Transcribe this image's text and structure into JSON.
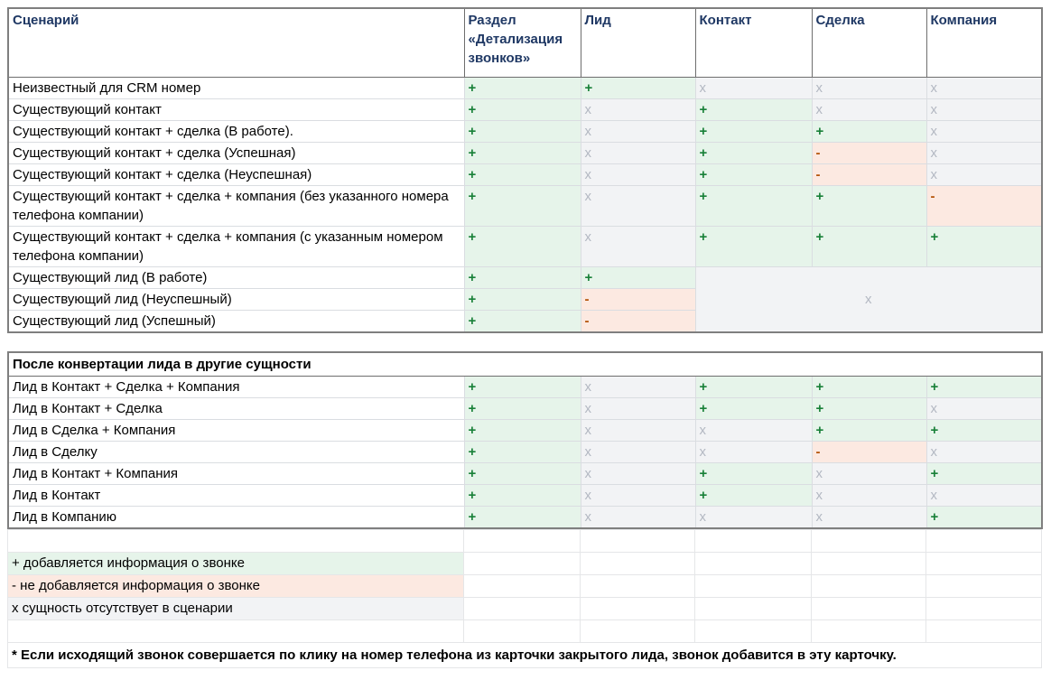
{
  "columns": [
    "Сценарий",
    "Раздел «Детализация звонков»",
    "Лид",
    "Контакт",
    "Сделка",
    "Компания"
  ],
  "markers": {
    "plus": "+",
    "minus": "-",
    "absent": "x"
  },
  "table1": {
    "rows": [
      {
        "label": "Неизвестный для CRM номер",
        "cells": [
          "plus",
          "plus",
          "absent",
          "absent",
          "absent"
        ]
      },
      {
        "label": "Существующий контакт",
        "cells": [
          "plus",
          "absent",
          "plus",
          "absent",
          "absent"
        ]
      },
      {
        "label": "Существующий контакт + сделка (В работе).",
        "cells": [
          "plus",
          "absent",
          "plus",
          "plus",
          "absent"
        ]
      },
      {
        "label": "Существующий контакт + сделка (Успешная)",
        "cells": [
          "plus",
          "absent",
          "plus",
          "minus",
          "absent"
        ]
      },
      {
        "label": "Существующий контакт + сделка (Неуспешная)",
        "cells": [
          "plus",
          "absent",
          "plus",
          "minus",
          "absent"
        ]
      },
      {
        "label": "Существующий контакт + сделка + компания (без указанного номера телефона компании)",
        "tall": true,
        "cells": [
          "plus",
          "absent",
          "plus",
          "plus",
          "minus"
        ]
      },
      {
        "label": "Существующий контакт + сделка + компания (с указанным номером телефона компании)",
        "tall": true,
        "cells": [
          "plus",
          "absent",
          "plus",
          "plus",
          "plus"
        ]
      },
      {
        "label": "Существующий лид (В работе)",
        "cells": [
          "plus",
          "plus",
          {
            "type": "absent",
            "colspan": 3,
            "rowspan": 3,
            "center": true
          }
        ]
      },
      {
        "label": "Существующий лид (Неуспешный)",
        "cells": [
          "plus",
          "minus"
        ]
      },
      {
        "label": "Существующий лид (Успешный)",
        "cells": [
          "plus",
          "minus"
        ]
      }
    ]
  },
  "section2": {
    "title": "После конвертации лида в другие сущности",
    "rows": [
      {
        "label": "Лид в Контакт + Сделка + Компания",
        "cells": [
          "plus",
          "absent",
          "plus",
          "plus",
          "plus"
        ]
      },
      {
        "label": "Лид в Контакт + Сделка",
        "cells": [
          "plus",
          "absent",
          "plus",
          "plus",
          "absent"
        ]
      },
      {
        "label": "Лид в Сделка + Компания",
        "cells": [
          "plus",
          "absent",
          "absent",
          "plus",
          "plus"
        ]
      },
      {
        "label": "Лид в Сделку",
        "cells": [
          "plus",
          "absent",
          "absent",
          "minus",
          "absent"
        ]
      },
      {
        "label": "Лид в Контакт + Компания",
        "cells": [
          "plus",
          "absent",
          "plus",
          "absent",
          "plus"
        ]
      },
      {
        "label": "Лид в Контакт",
        "cells": [
          "plus",
          "absent",
          "plus",
          "absent",
          "absent"
        ]
      },
      {
        "label": "Лид в Компанию",
        "cells": [
          "plus",
          "absent",
          "absent",
          "absent",
          "plus"
        ]
      }
    ]
  },
  "legend": [
    {
      "type": "plus",
      "text": "+ добавляется информация о звонке"
    },
    {
      "type": "minus",
      "text": "- не добавляется информация о звонке"
    },
    {
      "type": "absent",
      "text": "х сущность отсутствует в сценарии"
    }
  ],
  "footnote": "* Если исходящий звонок совершается по клику на номер телефона из карточки закрытого лида, звонок добавится в эту карточку.",
  "colors": {
    "plus_bg": "#e6f4ea",
    "plus_fg": "#188038",
    "minus_bg": "#fce9e1",
    "minus_fg": "#b45309",
    "absent_bg": "#f2f3f5",
    "absent_fg": "#b3b8c2",
    "header_fg": "#1f3864"
  }
}
